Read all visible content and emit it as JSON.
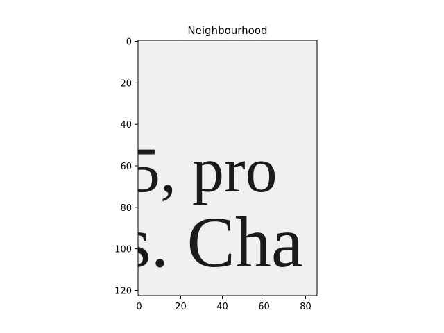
{
  "chart_data": {
    "type": "image",
    "title": "Neighbourhood",
    "xlim": [
      -0.5,
      85.5
    ],
    "ylim": [
      122.5,
      -0.5
    ],
    "x_ticks": [
      0,
      20,
      40,
      60,
      80
    ],
    "y_ticks": [
      0,
      20,
      40,
      60,
      80,
      100,
      120
    ],
    "x_tick_labels": [
      "0",
      "20",
      "40",
      "60",
      "80"
    ],
    "y_tick_labels": [
      "0",
      "20",
      "40",
      "60",
      "80",
      "100",
      "120"
    ],
    "grid": false,
    "colormap": "gray",
    "image_content": {
      "line1": "5, pro",
      "line2": "s. Cha"
    },
    "colors": {
      "background": "#efefef",
      "ink": "#1a1a1a"
    }
  }
}
